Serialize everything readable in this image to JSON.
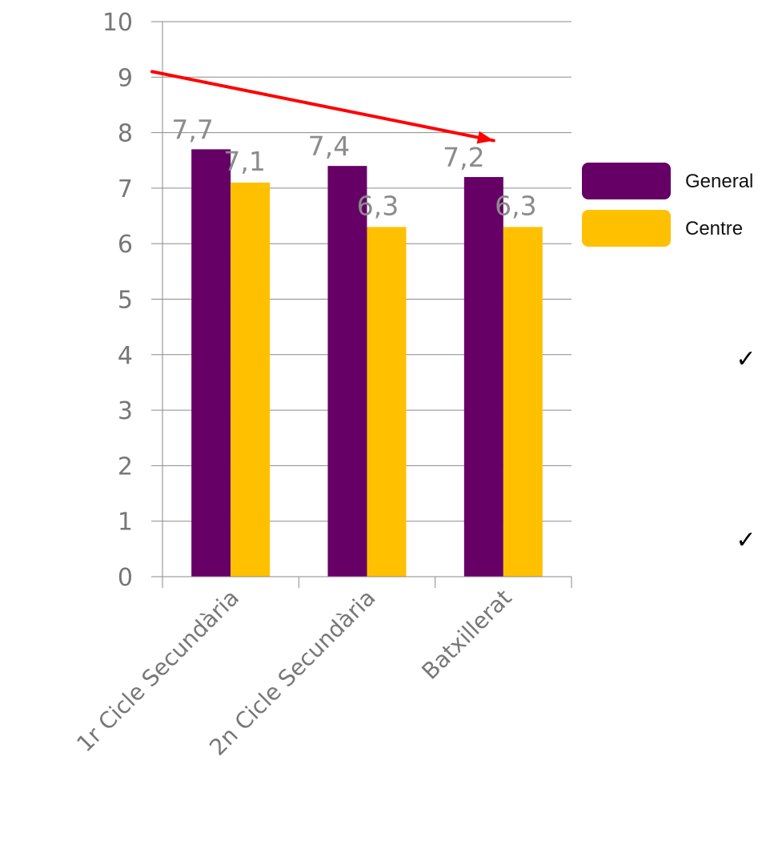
{
  "chart_data": {
    "type": "bar",
    "categories": [
      "1r Cicle Secundària",
      "2n Cicle Secundària",
      "Batxillerat"
    ],
    "series": [
      {
        "name": "General",
        "color": "#660066",
        "values": [
          7.7,
          7.4,
          7.2
        ]
      },
      {
        "name": "Centre",
        "color": "#FFC000",
        "values": [
          7.1,
          6.3,
          6.3
        ]
      }
    ],
    "data_labels": [
      [
        "7,7",
        "7,4",
        "7,2"
      ],
      [
        "7,1",
        "6,3",
        "6,3"
      ]
    ],
    "ylim": [
      0,
      10
    ],
    "yticks": [
      0,
      1,
      2,
      3,
      4,
      5,
      6,
      7,
      8,
      9,
      10
    ],
    "ytick_labels": [
      "0",
      "1",
      "2",
      "3",
      "4",
      "5",
      "6",
      "7",
      "8",
      "9",
      "10"
    ],
    "grid": true,
    "legend_position": "right",
    "title": "",
    "xlabel": "",
    "ylabel": "",
    "annotations": [
      {
        "type": "arrow",
        "color": "#FF0000",
        "from": {
          "x": 0,
          "y": 9.1
        },
        "to": {
          "x": 2.5,
          "y": 7.9
        }
      }
    ]
  },
  "decorations": {
    "checkmarks": [
      "✓",
      "✓"
    ]
  }
}
